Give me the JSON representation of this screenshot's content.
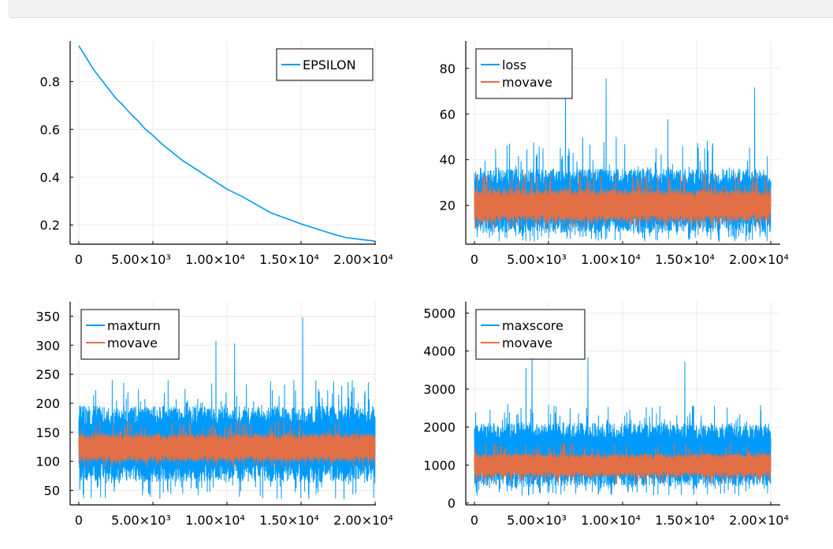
{
  "chart_data": [
    {
      "type": "line",
      "title": "",
      "xlabel": "",
      "ylabel": "",
      "xlim": [
        0,
        20000
      ],
      "ylim": [
        0.12,
        0.97
      ],
      "yticks": [
        0.2,
        0.4,
        0.6,
        0.8
      ],
      "ytick_labels": [
        "0.2",
        "0.4",
        "0.6",
        "0.8"
      ],
      "xticks": [
        0,
        5000,
        10000,
        15000,
        20000
      ],
      "xtick_labels": [
        "0",
        "5.00×10³",
        "1.00×10⁴",
        "1.50×10⁴",
        "2.00×10⁴"
      ],
      "grid": true,
      "legend": "top-right",
      "series": [
        {
          "name": "EPSILON",
          "color": "#009AFA",
          "x": [
            0,
            500,
            1000,
            1500,
            2000,
            2500,
            3000,
            3500,
            4000,
            4500,
            5000,
            5500,
            6000,
            6500,
            7000,
            7500,
            8000,
            8500,
            9000,
            9500,
            10000,
            11000,
            12000,
            13000,
            14000,
            15000,
            16000,
            17000,
            18000,
            19000,
            20000
          ],
          "y": [
            0.95,
            0.9,
            0.85,
            0.81,
            0.77,
            0.73,
            0.7,
            0.665,
            0.635,
            0.6,
            0.575,
            0.545,
            0.52,
            0.495,
            0.47,
            0.45,
            0.43,
            0.41,
            0.39,
            0.37,
            0.35,
            0.32,
            0.285,
            0.25,
            0.228,
            0.205,
            0.185,
            0.165,
            0.148,
            0.14,
            0.133
          ]
        }
      ]
    },
    {
      "type": "line",
      "title": "",
      "xlabel": "",
      "ylabel": "",
      "xlim": [
        0,
        20000
      ],
      "ylim": [
        3,
        92
      ],
      "yticks": [
        20,
        40,
        60,
        80
      ],
      "ytick_labels": [
        "20",
        "40",
        "60",
        "80"
      ],
      "xticks": [
        0,
        5000,
        10000,
        15000,
        20000
      ],
      "xtick_labels": [
        "0",
        "5.00×10³",
        "1.00×10⁴",
        "1.50×10⁴",
        "2.00×10⁴"
      ],
      "grid": true,
      "legend": "top-left",
      "series": [
        {
          "name": "loss",
          "color": "#009AFA",
          "band": [
            4,
            50
          ],
          "typical": [
            8,
            36
          ],
          "spike_max": 76
        },
        {
          "name": "movave",
          "color": "#E26F46",
          "band": [
            10,
            34
          ],
          "typical": [
            13,
            27
          ]
        }
      ]
    },
    {
      "type": "line",
      "title": "",
      "xlabel": "",
      "ylabel": "",
      "xlim": [
        0,
        20000
      ],
      "ylim": [
        25,
        375
      ],
      "yticks": [
        50,
        100,
        150,
        200,
        250,
        300,
        350
      ],
      "ytick_labels": [
        "50",
        "100",
        "150",
        "200",
        "250",
        "300",
        "350"
      ],
      "xticks": [
        0,
        5000,
        10000,
        15000,
        20000
      ],
      "xtick_labels": [
        "0",
        "5.00×10³",
        "1.00×10⁴",
        "1.50×10⁴",
        "2.00×10⁴"
      ],
      "grid": true,
      "legend": "top-left",
      "series": [
        {
          "name": "maxturn",
          "color": "#009AFA",
          "band": [
            35,
            240
          ],
          "typical": [
            65,
            195
          ],
          "spike_max": 362
        },
        {
          "name": "movave",
          "color": "#E26F46",
          "band": [
            90,
            170
          ],
          "typical": [
            100,
            148
          ]
        }
      ]
    },
    {
      "type": "line",
      "title": "",
      "xlabel": "",
      "ylabel": "",
      "xlim": [
        0,
        20000
      ],
      "ylim": [
        -50,
        5300
      ],
      "yticks": [
        0,
        1000,
        2000,
        3000,
        4000,
        5000
      ],
      "ytick_labels": [
        "0",
        "1000",
        "2000",
        "3000",
        "4000",
        "5000"
      ],
      "xticks": [
        0,
        5000,
        10000,
        15000,
        20000
      ],
      "xtick_labels": [
        "0",
        "5.00×10³",
        "1.00×10⁴",
        "1.50×10⁴",
        "2.00×10⁴"
      ],
      "grid": true,
      "legend": "top-left",
      "series": [
        {
          "name": "maxscore",
          "color": "#009AFA",
          "band": [
            200,
            2600
          ],
          "typical": [
            450,
            2100
          ],
          "spike_max": 4500
        },
        {
          "name": "movave",
          "color": "#E26F46",
          "band": [
            500,
            1600
          ],
          "typical": [
            700,
            1300
          ]
        }
      ]
    }
  ]
}
